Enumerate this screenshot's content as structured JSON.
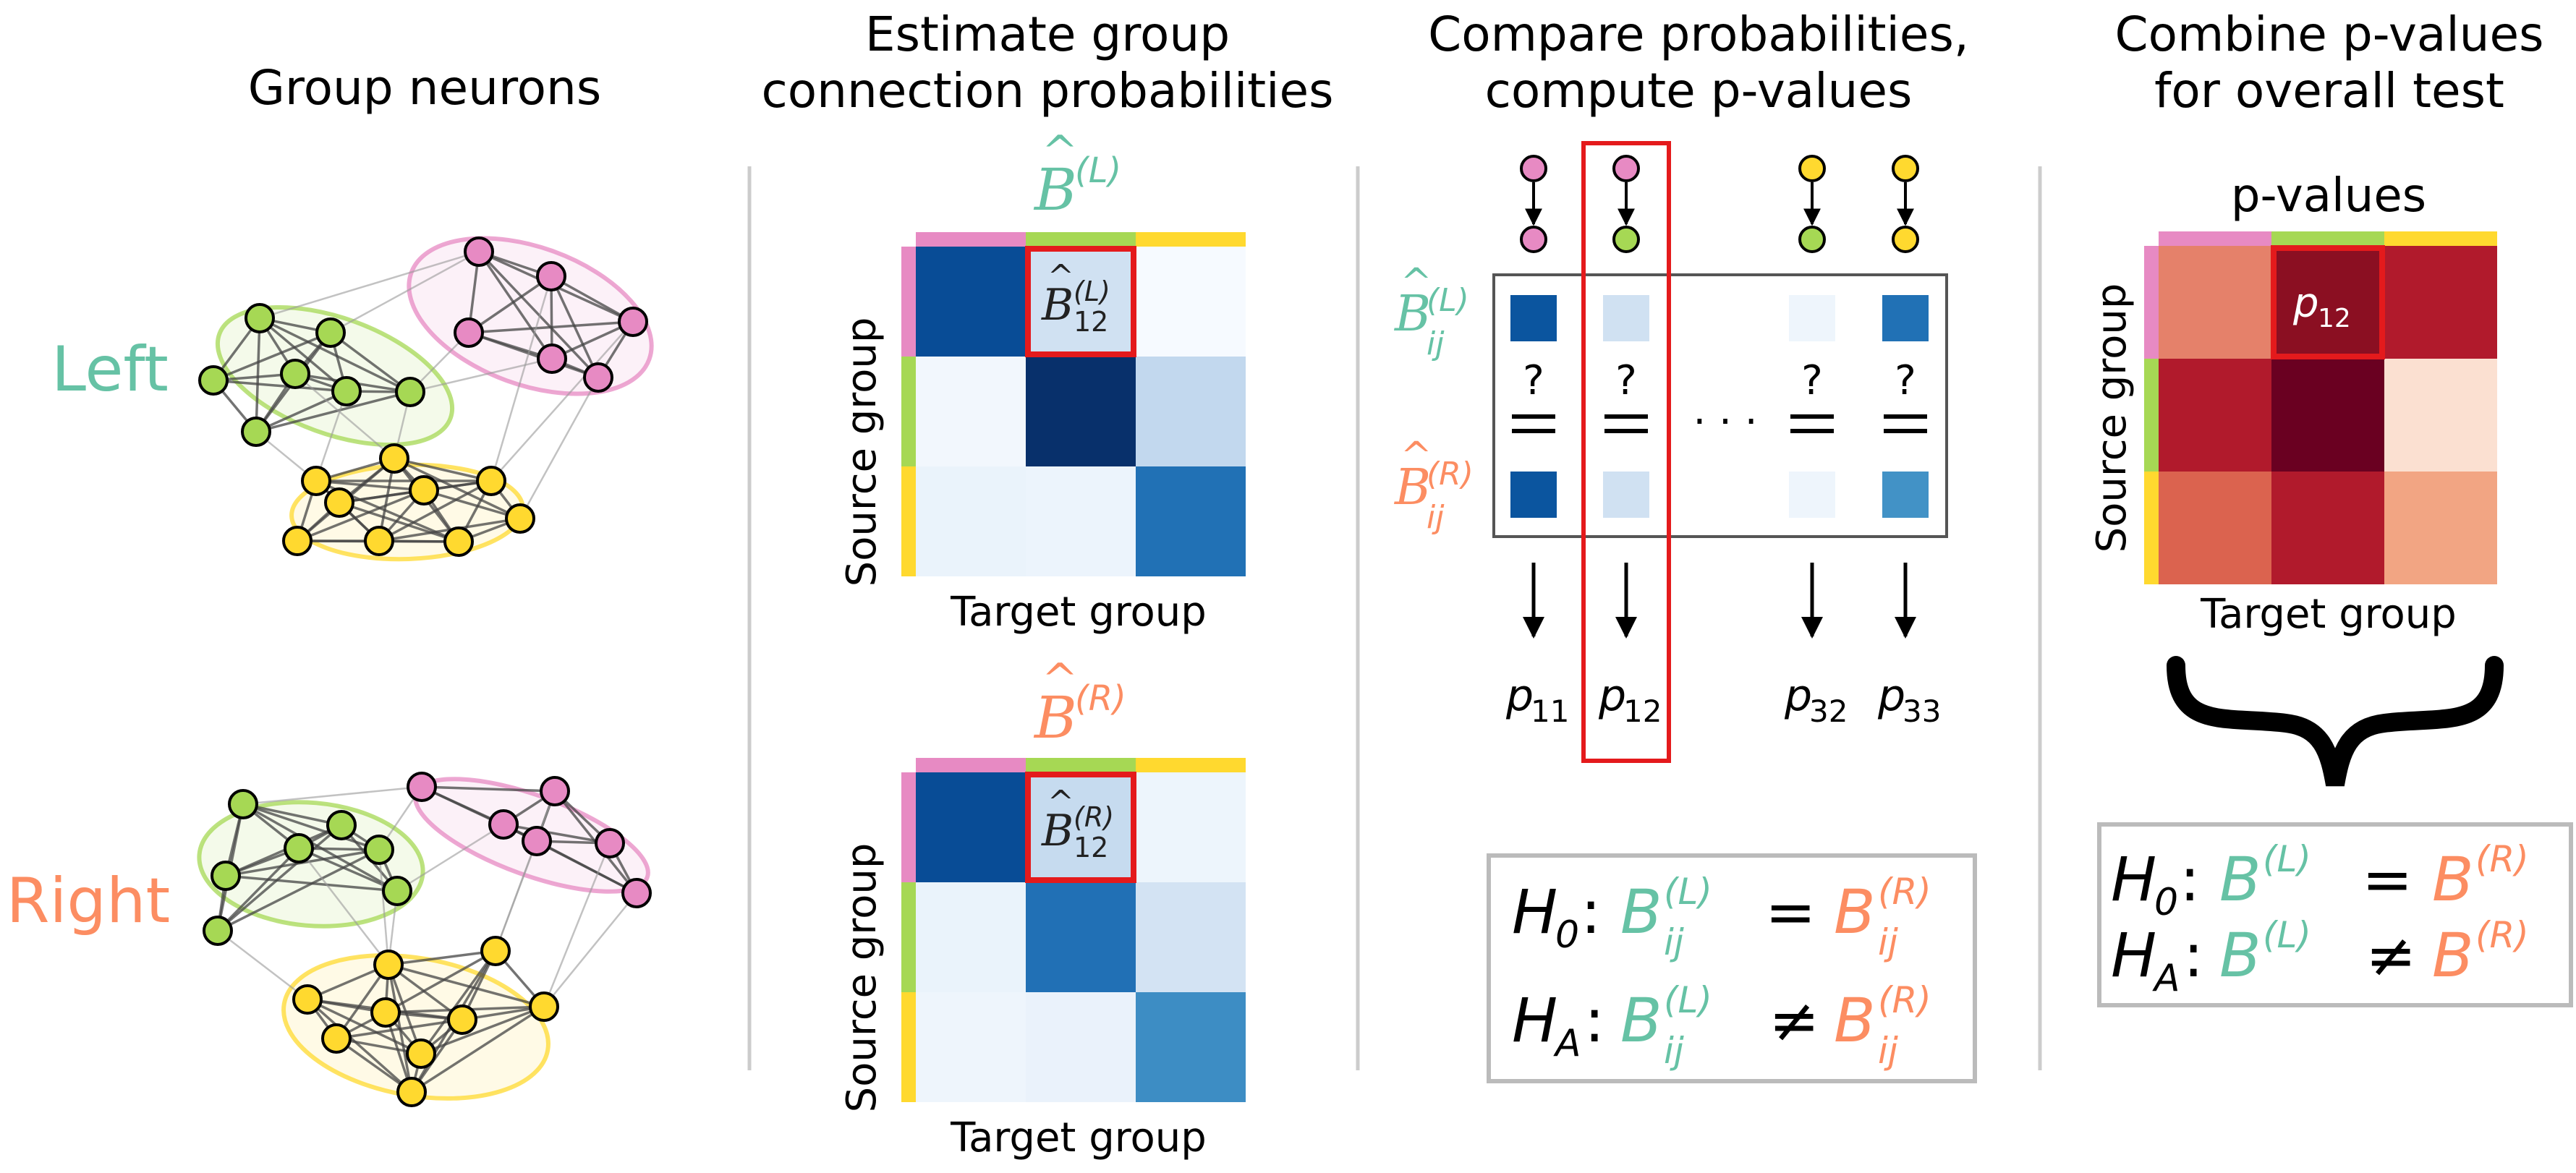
{
  "colors": {
    "left": "#66c2a5",
    "right": "#fc8d62",
    "group1": "#e78ac3",
    "group2": "#a6d854",
    "group3": "#ffd92f",
    "highlight": "#e41a1c",
    "divider": "#cccccc",
    "box": "#bbbbbb"
  },
  "panel1": {
    "title_line1": "Group neurons",
    "label_left": "Left",
    "label_right": "Right"
  },
  "panel2": {
    "title_line1": "Estimate group",
    "title_line2": "connection probabilities",
    "hat_B": "B",
    "sup_L": "(L)",
    "sup_R": "(R)",
    "sub_12": "12",
    "ylabel": "Source group",
    "xlabel": "Target group",
    "matrix_L": [
      [
        "#084c96",
        "#d0e1f2",
        "#f6faff"
      ],
      [
        "#f2f7fd",
        "#08306b",
        "#c2d8ee"
      ],
      [
        "#eaf3fb",
        "#ecf4fc",
        "#2171b5"
      ]
    ],
    "matrix_R": [
      [
        "#084c96",
        "#c6dbef",
        "#edf5fc"
      ],
      [
        "#eaf3fb",
        "#2170b5",
        "#d3e3f3"
      ],
      [
        "#eef5fc",
        "#eaf2fb",
        "#3d8dc4"
      ]
    ]
  },
  "panel3": {
    "title_line1": "Compare probabilities,",
    "title_line2": "compute p-values",
    "b_hat": "B",
    "sub_ij": "ij",
    "sup_L": "(L)",
    "sup_R": "(R)",
    "question": "?",
    "ellipsis": "· · ·",
    "p_letter": "p",
    "p_subs": [
      "11",
      "12",
      "32",
      "33"
    ],
    "cells_L": [
      "#0b559f",
      "#d0e1f2",
      "#eef5fc",
      "#2171b5"
    ],
    "cells_R": [
      "#0b559f",
      "#d0e1f2",
      "#eef5fc",
      "#4292c6"
    ],
    "pairs": [
      [
        "#e78ac3",
        "#e78ac3"
      ],
      [
        "#e78ac3",
        "#a6d854"
      ],
      [
        "#ffd92f",
        "#a6d854"
      ],
      [
        "#ffd92f",
        "#ffd92f"
      ]
    ],
    "h0": "H",
    "h0_sub": "0",
    "ha_sub": "A",
    "B": "B",
    "eq": "=",
    "neq": "≠"
  },
  "panel4": {
    "title_line1": "Combine p-values",
    "title_line2": "for overall test",
    "heat_title": "p-values",
    "ylabel": "Source group",
    "xlabel": "Target group",
    "p12": "12",
    "p_letter": "p",
    "matrix": [
      [
        "#e5816a",
        "#8b0f22",
        "#b11a2c"
      ],
      [
        "#b11a2c",
        "#6a0021",
        "#fbe0d1"
      ],
      [
        "#db634f",
        "#b11a2c",
        "#f2a583"
      ]
    ],
    "h0_sub": "0",
    "ha_sub": "A",
    "H": "H",
    "B": "B",
    "sup_L": "(L)",
    "sup_R": "(R)",
    "eq": "=",
    "neq": "≠"
  }
}
